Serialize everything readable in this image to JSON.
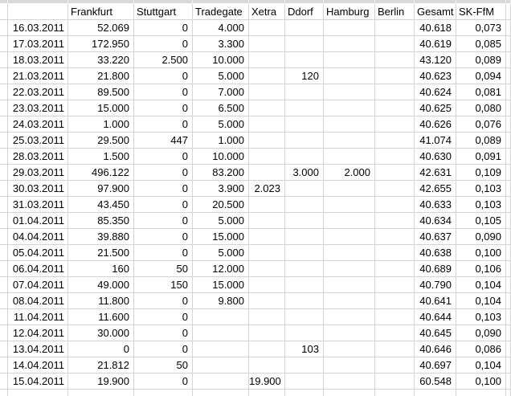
{
  "sheet": {
    "description": "Trading volume per exchange by date",
    "colors": {
      "gridline": "#d4d4d4",
      "cell_background": "#ffffff",
      "text": "#000000",
      "partial_row_fill": "#d8d8d8"
    },
    "columns": [
      {
        "key": "colA",
        "label": ""
      },
      {
        "key": "date",
        "label": ""
      },
      {
        "key": "frankfurt",
        "label": "Frankfurt"
      },
      {
        "key": "stuttgart",
        "label": "Stuttgart"
      },
      {
        "key": "tradegate",
        "label": "Tradegate"
      },
      {
        "key": "xetra",
        "label": "Xetra"
      },
      {
        "key": "ddorf",
        "label": "Ddorf"
      },
      {
        "key": "hamburg",
        "label": "Hamburg"
      },
      {
        "key": "berlin",
        "label": "Berlin"
      },
      {
        "key": "gesamt",
        "label": "Gesamt"
      },
      {
        "key": "skffm",
        "label": "SK-FfM"
      },
      {
        "key": "colEnd",
        "label": ""
      }
    ],
    "rows": [
      [
        "",
        "16.03.2011",
        "52.069",
        "0",
        "4.000",
        "",
        "",
        "",
        "",
        "40.618",
        "0,073",
        ""
      ],
      [
        "",
        "17.03.2011",
        "172.950",
        "0",
        "3.300",
        "",
        "",
        "",
        "",
        "40.619",
        "0,085",
        ""
      ],
      [
        "",
        "18.03.2011",
        "33.220",
        "2.500",
        "10.000",
        "",
        "",
        "",
        "",
        "43.120",
        "0,089",
        ""
      ],
      [
        "",
        "21.03.2011",
        "21.800",
        "0",
        "5.000",
        "",
        "120",
        "",
        "",
        "40.623",
        "0,094",
        ""
      ],
      [
        "",
        "22.03.2011",
        "89.500",
        "0",
        "7.000",
        "",
        "",
        "",
        "",
        "40.624",
        "0,081",
        ""
      ],
      [
        "",
        "23.03.2011",
        "15.000",
        "0",
        "6.500",
        "",
        "",
        "",
        "",
        "40.625",
        "0,080",
        ""
      ],
      [
        "",
        "24.03.2011",
        "1.000",
        "0",
        "5.000",
        "",
        "",
        "",
        "",
        "40.626",
        "0,076",
        ""
      ],
      [
        "",
        "25.03.2011",
        "29.500",
        "447",
        "1.000",
        "",
        "",
        "",
        "",
        "41.074",
        "0,089",
        ""
      ],
      [
        "",
        "28.03.2011",
        "1.500",
        "0",
        "10.000",
        "",
        "",
        "",
        "",
        "40.630",
        "0,091",
        ""
      ],
      [
        "",
        "29.03.2011",
        "496.122",
        "0",
        "83.200",
        "",
        "3.000",
        "2.000",
        "",
        "42.631",
        "0,109",
        ""
      ],
      [
        "",
        "30.03.2011",
        "97.900",
        "0",
        "3.900",
        "2.023",
        "",
        "",
        "",
        "42.655",
        "0,103",
        ""
      ],
      [
        "",
        "31.03.2011",
        "43.450",
        "0",
        "20.500",
        "",
        "",
        "",
        "",
        "40.633",
        "0,103",
        ""
      ],
      [
        "",
        "01.04.2011",
        "85.350",
        "0",
        "5.000",
        "",
        "",
        "",
        "",
        "40.634",
        "0,105",
        ""
      ],
      [
        "",
        "04.04.2011",
        "39.880",
        "0",
        "15.000",
        "",
        "",
        "",
        "",
        "40.637",
        "0,090",
        ""
      ],
      [
        "",
        "05.04.2011",
        "21.500",
        "0",
        "5.000",
        "",
        "",
        "",
        "",
        "40.638",
        "0,100",
        ""
      ],
      [
        "",
        "06.04.2011",
        "160",
        "50",
        "12.000",
        "",
        "",
        "",
        "",
        "40.689",
        "0,106",
        ""
      ],
      [
        "",
        "07.04.2011",
        "49.000",
        "150",
        "15.000",
        "",
        "",
        "",
        "",
        "40.790",
        "0,104",
        ""
      ],
      [
        "",
        "08.04.2011",
        "11.800",
        "0",
        "9.800",
        "",
        "",
        "",
        "",
        "40.641",
        "0,104",
        ""
      ],
      [
        "",
        "11.04.2011",
        "11.600",
        "0",
        "",
        "",
        "",
        "",
        "",
        "40.644",
        "0,103",
        ""
      ],
      [
        "",
        "12.04.2011",
        "30.000",
        "0",
        "",
        "",
        "",
        "",
        "",
        "40.645",
        "0,090",
        ""
      ],
      [
        "",
        "13.04.2011",
        "0",
        "0",
        "",
        "",
        "103",
        "",
        "",
        "40.646",
        "0,086",
        ""
      ],
      [
        "",
        "14.04.2011",
        "21.812",
        "50",
        "",
        "",
        "",
        "",
        "",
        "40.697",
        "0,104",
        ""
      ],
      [
        "",
        "15.04.2011",
        "19.900",
        "0",
        "",
        "19.900",
        "",
        "",
        "",
        "60.548",
        "0,100",
        ""
      ]
    ]
  }
}
